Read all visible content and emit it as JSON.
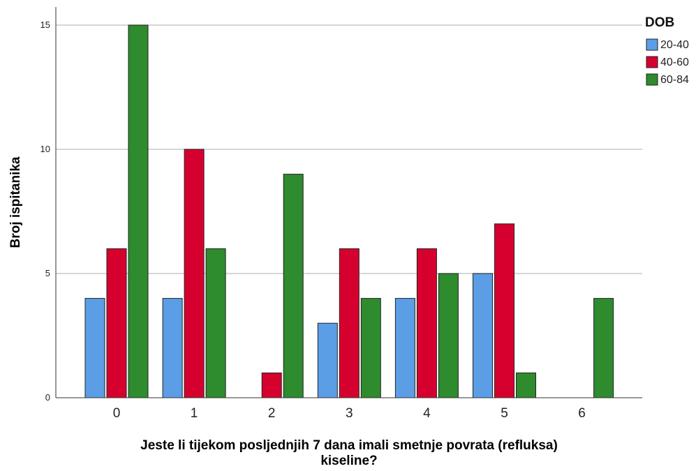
{
  "chart_data": {
    "type": "bar",
    "categories": [
      "0",
      "1",
      "2",
      "3",
      "4",
      "5",
      "6"
    ],
    "series": [
      {
        "name": "20-40",
        "color": "#5b9ee6",
        "values": [
          4,
          4,
          0,
          3,
          4,
          5,
          0
        ]
      },
      {
        "name": "40-60",
        "color": "#d6002e",
        "values": [
          6,
          10,
          1,
          6,
          6,
          7,
          0
        ]
      },
      {
        "name": "60-84",
        "color": "#2e8b2e",
        "values": [
          15,
          6,
          9,
          4,
          5,
          1,
          4
        ]
      }
    ],
    "ylabel": "Broj ispitanika",
    "xlabel_lines": [
      "Jeste li tijekom posljednjih 7 dana imali smetnje povrata (refluksa)",
      "kiseline?"
    ],
    "ylim": [
      0,
      16
    ],
    "yticks": [
      "0",
      "5",
      "10",
      "15"
    ],
    "ytick_values": [
      0,
      5,
      10,
      15
    ],
    "legend_title": "DOB",
    "legend_position": "top-right",
    "grid": "horizontal"
  }
}
